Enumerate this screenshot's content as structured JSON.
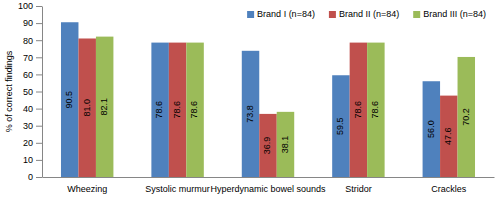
{
  "chart_data": {
    "type": "bar",
    "y_label": "% of correct findings",
    "categories": [
      "Wheezing",
      "Systolic murmur",
      "Hyperdynamic bowel sounds",
      "Stridor",
      "Crackles"
    ],
    "series": [
      {
        "name": "Brand I (n=84)",
        "color": "#4f81bd",
        "values": [
          90.5,
          78.6,
          73.8,
          59.5,
          56
        ],
        "value_labels": [
          "90.5",
          "78.6",
          "73.8",
          "59.5",
          "56.0"
        ]
      },
      {
        "name": "Brand II (n=84)",
        "color": "#c0504d",
        "values": [
          81,
          78.6,
          36.9,
          78.6,
          47.6
        ],
        "value_labels": [
          "81.0",
          "78.6",
          "36.9",
          "78.6",
          "47.6"
        ]
      },
      {
        "name": "Brand III (n=84)",
        "color": "#9bbb59",
        "values": [
          82.1,
          78.6,
          38.1,
          78.6,
          70.2
        ],
        "value_labels": [
          "82.1",
          "78.6",
          "38.1",
          "78.6",
          "70.2"
        ]
      }
    ],
    "ylim": [
      0,
      100
    ],
    "yticks": [
      0,
      10,
      20,
      30,
      40,
      50,
      60,
      70,
      80,
      90,
      100
    ],
    "grid": false,
    "legend": "top-right",
    "data_labels": true
  }
}
